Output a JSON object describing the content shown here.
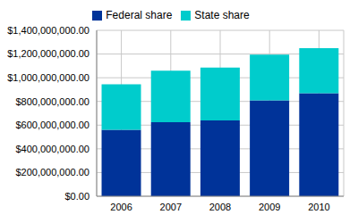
{
  "chart_data": {
    "type": "bar",
    "categories": [
      "2006",
      "2007",
      "2008",
      "2009",
      "2010"
    ],
    "series": [
      {
        "name": "Federal share",
        "color": "#003399",
        "values": [
          560000000,
          625000000,
          640000000,
          810000000,
          870000000
        ]
      },
      {
        "name": "State share",
        "color": "#00cccc",
        "values": [
          385000000,
          435000000,
          445000000,
          385000000,
          380000000
        ]
      }
    ],
    "stacked": true,
    "ylim": [
      0,
      1400000000
    ],
    "yticks": [
      {
        "value": 0,
        "label": "$0.00"
      },
      {
        "value": 200000000,
        "label": "$200,000,000.00"
      },
      {
        "value": 400000000,
        "label": "$400,000,000.00"
      },
      {
        "value": 600000000,
        "label": "$600,000,000.00"
      },
      {
        "value": 800000000,
        "label": "$800,000,000.00"
      },
      {
        "value": 1000000000,
        "label": "$1,000,000,000.00"
      },
      {
        "value": 1200000000,
        "label": "$1,200,000,000.00"
      },
      {
        "value": 1400000000,
        "label": "$1,400,000,000.00"
      }
    ],
    "grid": true,
    "legend": "top"
  }
}
